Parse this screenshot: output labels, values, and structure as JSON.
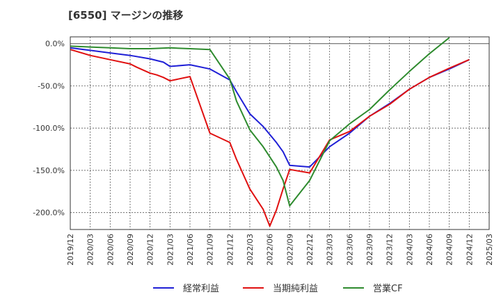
{
  "chart_data": {
    "type": "line",
    "title": "[6550]  マージンの推移",
    "ylim": [
      -220,
      8
    ],
    "xlim": [
      "2019/12",
      "2025/03"
    ],
    "y_ticks": [
      0,
      -50,
      -100,
      -150,
      -200
    ],
    "y_tick_labels": [
      "0.0%",
      "-50.0%",
      "-100.0%",
      "-150.0%",
      "-200.0%"
    ],
    "x_ticks": [
      "2019/12",
      "2020/03",
      "2020/06",
      "2020/09",
      "2020/12",
      "2021/03",
      "2021/06",
      "2021/09",
      "2021/12",
      "2022/03",
      "2022/06",
      "2022/09",
      "2022/12",
      "2023/03",
      "2023/06",
      "2023/09",
      "2023/12",
      "2024/03",
      "2024/06",
      "2024/09",
      "2024/12",
      "2025/03"
    ],
    "grid": true,
    "legend_position": "bottom",
    "series": [
      {
        "name": "経常利益",
        "color": "#1f1fd6",
        "x": [
          "2019/12",
          "2020/03",
          "2020/06",
          "2020/09",
          "2020/12",
          "2021/01",
          "2021/02",
          "2021/03",
          "2021/06",
          "2021/09",
          "2021/12",
          "2022/01",
          "2022/03",
          "2022/05",
          "2022/07",
          "2022/08",
          "2022/09",
          "2022/12",
          "2023/03",
          "2023/06",
          "2023/09",
          "2023/12",
          "2024/03",
          "2024/06",
          "2024/09",
          "2024/12"
        ],
        "values": [
          -5,
          -8,
          -11,
          -14,
          -18,
          -20,
          -22,
          -27,
          -25,
          -30,
          -43,
          -57,
          -83,
          -98,
          -117,
          -128,
          -144,
          -146,
          -122,
          -106,
          -86,
          -71,
          -54,
          -40,
          -30,
          -19
        ]
      },
      {
        "name": "当期純利益",
        "color": "#e01010",
        "x": [
          "2019/12",
          "2020/03",
          "2020/06",
          "2020/09",
          "2020/10",
          "2020/12",
          "2021/01",
          "2021/02",
          "2021/03",
          "2021/06",
          "2021/09",
          "2021/12",
          "2022/01",
          "2022/03",
          "2022/05",
          "2022/06",
          "2022/07",
          "2022/08",
          "2022/09",
          "2022/12",
          "2023/03",
          "2023/06",
          "2023/09",
          "2023/12",
          "2024/03",
          "2024/06",
          "2024/09",
          "2024/12"
        ],
        "values": [
          -7,
          -14,
          -19,
          -24,
          -28,
          -35,
          -37,
          -40,
          -44,
          -39,
          -106,
          -117,
          -137,
          -172,
          -196,
          -216,
          -197,
          -172,
          -149,
          -153,
          -114,
          -104,
          -86,
          -72,
          -54,
          -40,
          -29,
          -19
        ]
      },
      {
        "name": "営業CF",
        "color": "#2e8b2e",
        "x": [
          "2019/12",
          "2020/03",
          "2020/06",
          "2020/09",
          "2020/12",
          "2021/03",
          "2021/06",
          "2021/09",
          "2021/12",
          "2022/01",
          "2022/03",
          "2022/05",
          "2022/07",
          "2022/08",
          "2022/09",
          "2022/12",
          "2023/03",
          "2023/06",
          "2023/09",
          "2023/12",
          "2024/03",
          "2024/06",
          "2024/09"
        ],
        "values": [
          -3,
          -4,
          -5,
          -6,
          -6,
          -5,
          -6,
          -7,
          -42,
          -68,
          -102,
          -122,
          -146,
          -162,
          -192,
          -162,
          -115,
          -95,
          -78,
          -55,
          -33,
          -12,
          7
        ]
      }
    ]
  }
}
